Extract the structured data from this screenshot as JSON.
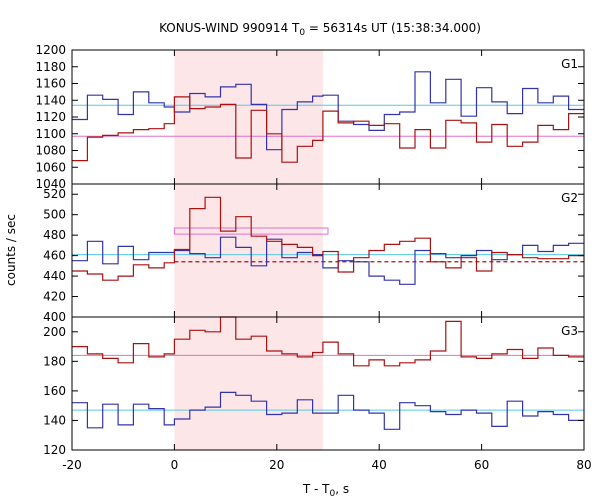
{
  "chart_data": {
    "type": "line",
    "title": {
      "prefix": "KONUS-WIND 990914 T",
      "sub": "0",
      "suffix": " = 56314s UT (15:38:34.000)"
    },
    "xlabel": {
      "prefix": "T - T",
      "sub": "0",
      "suffix": ", s"
    },
    "ylabel": "counts / sec",
    "xlim": [
      -20,
      80
    ],
    "x_ticks": [
      -20,
      0,
      20,
      40,
      60,
      80
    ],
    "shaded_interval": [
      0,
      29
    ],
    "colors": {
      "blue": "#3333aa",
      "red": "#aa1111",
      "cyan": "#55c8e8",
      "pink": "#e070c8",
      "shade": "#fde6e8"
    },
    "x_bin_edges": [
      -20,
      -17,
      -14,
      -11,
      -8,
      -5,
      -2,
      0,
      3,
      6,
      9,
      12,
      15,
      18,
      21,
      24,
      27,
      29,
      32,
      35,
      38,
      41,
      44,
      47,
      50,
      53,
      56,
      59,
      62,
      65,
      68,
      71,
      74,
      77,
      80
    ],
    "panels": [
      {
        "label": "G1",
        "ylim": [
          1040,
          1200
        ],
        "y_ticks": [
          1040,
          1060,
          1080,
          1100,
          1120,
          1140,
          1160,
          1180,
          1200
        ],
        "series": [
          {
            "color": "blue",
            "values": [
              1117,
              1146,
              1141,
              1123,
              1150,
              1137,
              1132,
              1126,
              1148,
              1144,
              1156,
              1159,
              1135,
              1081,
              1129,
              1138,
              1145,
              1146,
              1115,
              1111,
              1104,
              1123,
              1126,
              1174,
              1137,
              1165,
              1121,
              1155,
              1138,
              1124,
              1154,
              1137,
              1145,
              1129
            ]
          },
          {
            "color": "red",
            "values": [
              1068,
              1096,
              1098,
              1101,
              1105,
              1106,
              1112,
              1144,
              1130,
              1132,
              1135,
              1071,
              1128,
              1100,
              1066,
              1085,
              1092,
              1127,
              1113,
              1115,
              1110,
              1112,
              1083,
              1105,
              1083,
              1116,
              1113,
              1090,
              1111,
              1085,
              1090,
              1110,
              1105,
              1124
            ]
          }
        ],
        "ref_lines": [
          {
            "color": "cyan",
            "y": 1134
          },
          {
            "color": "pink",
            "y": 1097
          }
        ]
      },
      {
        "label": "G2",
        "ylim": [
          400,
          530
        ],
        "y_ticks": [
          400,
          420,
          440,
          460,
          480,
          500,
          520
        ],
        "series": [
          {
            "color": "blue",
            "values": [
              455,
              474,
              452,
              469,
              456,
              463,
              463,
              465,
              462,
              458,
              478,
              468,
              450,
              476,
              458,
              463,
              461,
              448,
              455,
              454,
              440,
              436,
              432,
              465,
              462,
              458,
              460,
              465,
              456,
              461,
              470,
              464,
              470,
              472
            ]
          },
          {
            "color": "red",
            "values": [
              445,
              442,
              436,
              440,
              451,
              448,
              453,
              466,
              506,
              517,
              484,
              498,
              479,
              474,
              471,
              468,
              460,
              464,
              444,
              458,
              465,
              471,
              474,
              477,
              454,
              448,
              458,
              445,
              463,
              461,
              458,
              457,
              457,
              460
            ]
          }
        ],
        "ref_lines": [
          {
            "color": "cyan",
            "y": 461
          }
        ],
        "dashed_lines": [
          {
            "color": "red",
            "y": 454
          }
        ],
        "interval_box": {
          "color": "pink",
          "x": [
            0,
            30
          ],
          "y": [
            481,
            487
          ]
        }
      },
      {
        "label": "G3",
        "ylim": [
          120,
          210
        ],
        "y_ticks": [
          120,
          140,
          160,
          180,
          200
        ],
        "series": [
          {
            "color": "blue",
            "values": [
              152,
              135,
              151,
              137,
              151,
              148,
              137,
              141,
              147,
              149,
              159,
              157,
              153,
              144,
              145,
              154,
              145,
              145,
              157,
              147,
              145,
              134,
              152,
              150,
              146,
              144,
              147,
              145,
              136,
              153,
              143,
              146,
              144,
              140
            ]
          },
          {
            "color": "red",
            "values": [
              190,
              185,
              182,
              179,
              192,
              183,
              185,
              195,
              201,
              200,
              210,
              195,
              197,
              187,
              185,
              183,
              186,
              193,
              185,
              177,
              181,
              177,
              179,
              181,
              187,
              207,
              183,
              182,
              185,
              188,
              182,
              189,
              184,
              183
            ]
          }
        ],
        "ref_lines": [
          {
            "color": "pink",
            "y": 184
          },
          {
            "color": "cyan",
            "y": 147
          }
        ]
      }
    ]
  }
}
